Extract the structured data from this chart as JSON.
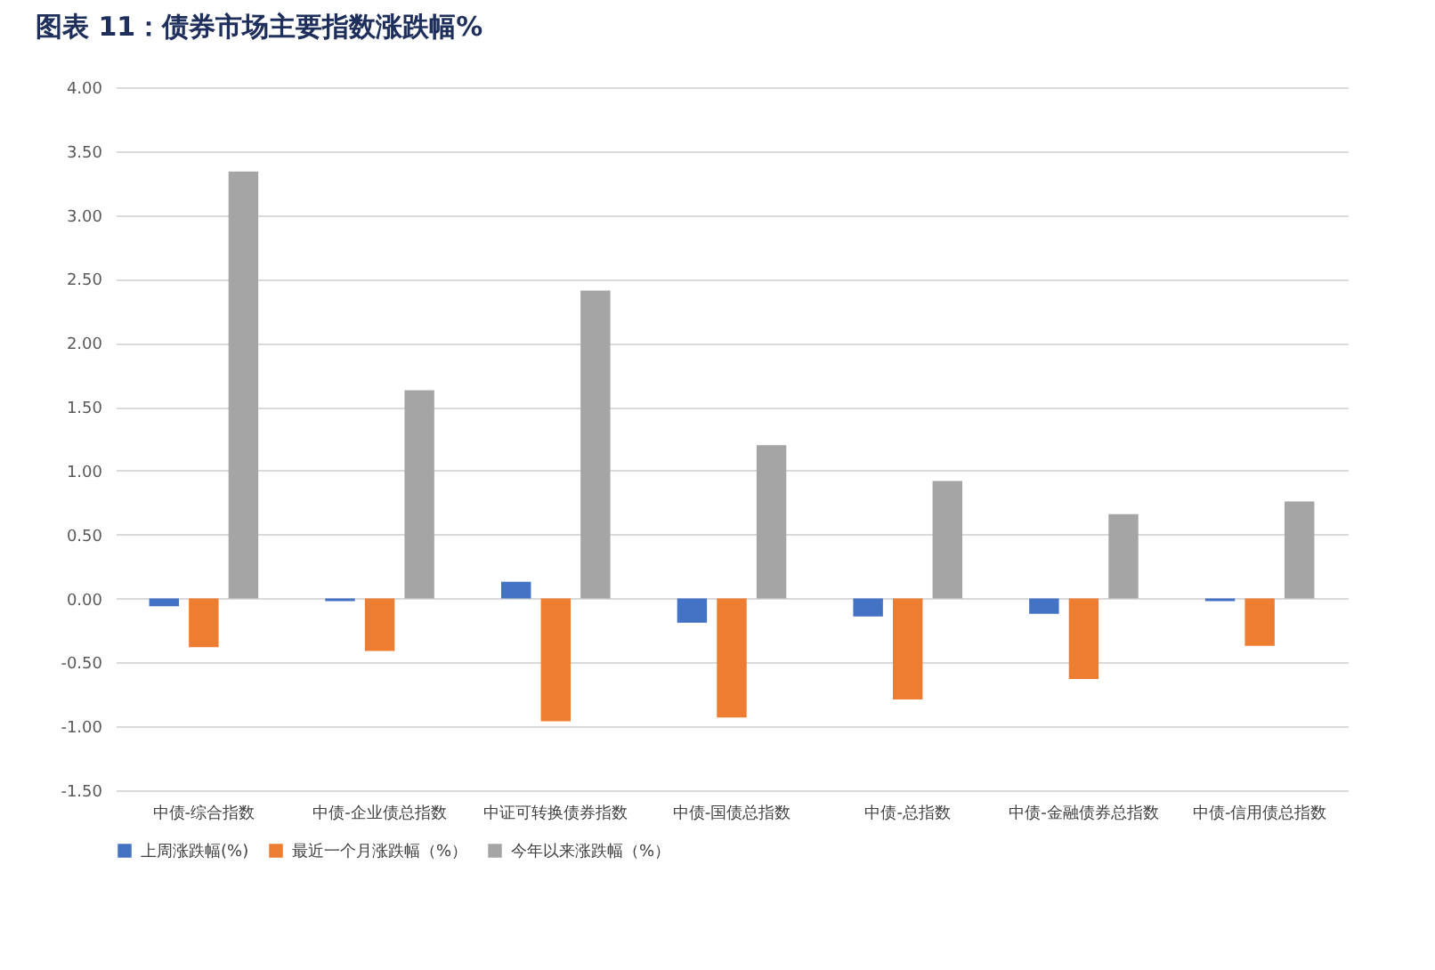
{
  "chart_data": {
    "type": "bar",
    "title": "图表 11：债券市场主要指数涨跌幅%",
    "categories": [
      "中债-综合指数",
      "中债-企业债总指数",
      "中证可转换债券指数",
      "中债-国债总指数",
      "中债-总指数",
      "中债-金融债券总指数",
      "中债-信用债总指数"
    ],
    "series": [
      {
        "name": "上周涨跌幅(%)",
        "color": "#4472c4",
        "values": [
          -0.06,
          -0.02,
          0.13,
          -0.19,
          -0.14,
          -0.12,
          -0.02
        ]
      },
      {
        "name": "最近一个月涨跌幅（%）",
        "color": "#ed7d31",
        "values": [
          -0.38,
          -0.41,
          -0.96,
          -0.93,
          -0.79,
          -0.63,
          -0.37
        ]
      },
      {
        "name": "今年以来涨跌幅（%）",
        "color": "#a5a5a5",
        "values": [
          3.34,
          1.63,
          2.41,
          1.2,
          0.92,
          0.66,
          0.76
        ]
      }
    ],
    "ylim": [
      -1.5,
      4
    ],
    "yticks": [
      {
        "value": -1.5,
        "label": "-1.50"
      },
      {
        "value": -1,
        "label": "-1.00"
      },
      {
        "value": -0.5,
        "label": "-0.50"
      },
      {
        "value": 0,
        "label": "0.00"
      },
      {
        "value": 0.5,
        "label": "0.50"
      },
      {
        "value": 1,
        "label": "1.00"
      },
      {
        "value": 1.5,
        "label": "1.50"
      },
      {
        "value": 2,
        "label": "2.00"
      },
      {
        "value": 2.5,
        "label": "2.50"
      },
      {
        "value": 3,
        "label": "3.00"
      },
      {
        "value": 3.5,
        "label": "3.50"
      },
      {
        "value": 4,
        "label": "4.00"
      }
    ],
    "grid": "y",
    "legend": "bottom"
  }
}
